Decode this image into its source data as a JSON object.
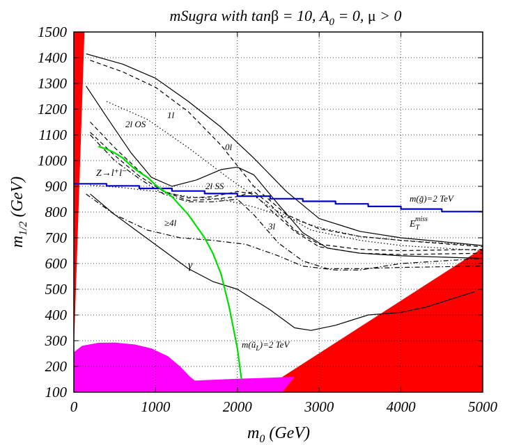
{
  "chart_data": {
    "type": "line",
    "title_parts": {
      "prefix": "mSugra with tan",
      "beta": "β",
      "eq": " = 10, A",
      "a_sub": "0",
      "mid": " = 0, ",
      "mu": "μ",
      "suffix": " > 0"
    },
    "xlabel_parts": {
      "base": "m",
      "sub": "0",
      "rest": " (GeV)"
    },
    "ylabel_parts": {
      "base": "m",
      "sub": "1/2",
      "rest": " (GeV)"
    },
    "xlim": [
      0,
      5000
    ],
    "ylim": [
      100,
      1500
    ],
    "xticks": [
      "0",
      "1000",
      "2000",
      "3000",
      "4000",
      "5000"
    ],
    "xtick_values": [
      0,
      1000,
      2000,
      3000,
      4000,
      5000
    ],
    "yticks": [
      "100",
      "200",
      "300",
      "400",
      "500",
      "600",
      "700",
      "800",
      "900",
      "1000",
      "1100",
      "1200",
      "1300",
      "1400",
      "1500"
    ],
    "ytick_values": [
      100,
      200,
      300,
      400,
      500,
      600,
      700,
      800,
      900,
      1000,
      1100,
      1200,
      1300,
      1400,
      1500
    ],
    "grid": true,
    "colors": {
      "excluded": "#ff0000",
      "lep": "#ff00ff",
      "gluino": "#0000cc",
      "squark": "#00dd00",
      "reach": "#000000"
    },
    "regions": [
      {
        "name": "excluded-left",
        "color": "#ff0000",
        "points": [
          [
            0,
            100
          ],
          [
            0,
            1500
          ],
          [
            130,
            1500
          ],
          [
            0,
            260
          ]
        ]
      },
      {
        "name": "excluded-right",
        "color": "#ff0000",
        "points": [
          [
            2260,
            100
          ],
          [
            5000,
            660
          ],
          [
            5000,
            100
          ]
        ]
      },
      {
        "name": "lep-excluded",
        "color": "#ff00ff",
        "points": [
          [
            0,
            100
          ],
          [
            0,
            255
          ],
          [
            100,
            280
          ],
          [
            300,
            292
          ],
          [
            500,
            293
          ],
          [
            750,
            285
          ],
          [
            950,
            270
          ],
          [
            1150,
            240
          ],
          [
            1300,
            200
          ],
          [
            1420,
            160
          ],
          [
            1480,
            145
          ],
          [
            1700,
            148
          ],
          [
            2000,
            152
          ],
          [
            2300,
            155
          ],
          [
            2700,
            160
          ],
          [
            2550,
            100
          ]
        ]
      }
    ],
    "series": [
      {
        "name": "E_T^miss",
        "style": "solid",
        "points": [
          [
            150,
            1415
          ],
          [
            600,
            1375
          ],
          [
            1000,
            1320
          ],
          [
            1400,
            1230
          ],
          [
            1800,
            1130
          ],
          [
            2200,
            1010
          ],
          [
            2600,
            880
          ],
          [
            3000,
            775
          ],
          [
            3500,
            725
          ],
          [
            4000,
            700
          ],
          [
            4500,
            685
          ],
          [
            5000,
            670
          ]
        ]
      },
      {
        "name": "1l",
        "style": "dashed",
        "points": [
          [
            200,
            1390
          ],
          [
            600,
            1345
          ],
          [
            1000,
            1285
          ],
          [
            1400,
            1190
          ],
          [
            1800,
            1060
          ],
          [
            2200,
            900
          ],
          [
            2600,
            790
          ],
          [
            3000,
            735
          ],
          [
            3500,
            705
          ],
          [
            4000,
            690
          ],
          [
            5000,
            665
          ]
        ]
      },
      {
        "name": "0l",
        "style": "solid",
        "points": [
          [
            150,
            1290
          ],
          [
            400,
            1170
          ],
          [
            700,
            1030
          ],
          [
            950,
            935
          ],
          [
            1200,
            900
          ],
          [
            1500,
            925
          ],
          [
            1800,
            965
          ],
          [
            2000,
            975
          ],
          [
            2200,
            945
          ],
          [
            2500,
            830
          ],
          [
            2800,
            720
          ],
          [
            3100,
            660
          ],
          [
            3500,
            640
          ],
          [
            4000,
            630
          ],
          [
            5000,
            620
          ]
        ]
      },
      {
        "name": "2l OS",
        "style": "dashed",
        "points": [
          [
            200,
            1150
          ],
          [
            500,
            1050
          ],
          [
            800,
            960
          ],
          [
            1100,
            880
          ],
          [
            1400,
            845
          ],
          [
            1700,
            850
          ],
          [
            2000,
            860
          ],
          [
            2200,
            880
          ],
          [
            2400,
            830
          ],
          [
            2700,
            730
          ],
          [
            3000,
            675
          ],
          [
            3500,
            655
          ],
          [
            4000,
            650
          ],
          [
            5000,
            655
          ]
        ]
      },
      {
        "name": "2l OS dotted",
        "style": "dotted",
        "points": [
          [
            400,
            1230
          ],
          [
            900,
            1160
          ],
          [
            1400,
            1050
          ],
          [
            1900,
            930
          ],
          [
            2400,
            820
          ],
          [
            2900,
            730
          ],
          [
            3500,
            690
          ],
          [
            4000,
            670
          ],
          [
            5000,
            650
          ]
        ]
      },
      {
        "name": "2l SS",
        "style": "dashed",
        "points": [
          [
            200,
            1110
          ],
          [
            500,
            1020
          ],
          [
            800,
            940
          ],
          [
            1100,
            880
          ],
          [
            1400,
            855
          ],
          [
            1700,
            860
          ],
          [
            2000,
            880
          ],
          [
            2200,
            870
          ],
          [
            2400,
            810
          ],
          [
            2700,
            725
          ],
          [
            3000,
            665
          ],
          [
            3500,
            640
          ],
          [
            4000,
            635
          ],
          [
            5000,
            640
          ]
        ]
      },
      {
        "name": "3l",
        "style": "dashdot",
        "points": [
          [
            200,
            1100
          ],
          [
            500,
            1000
          ],
          [
            800,
            930
          ],
          [
            1100,
            870
          ],
          [
            1400,
            840
          ],
          [
            1700,
            840
          ],
          [
            2000,
            850
          ],
          [
            2200,
            790
          ],
          [
            2500,
            680
          ],
          [
            2800,
            610
          ],
          [
            3100,
            580
          ],
          [
            3500,
            580
          ],
          [
            4000,
            585
          ],
          [
            5000,
            590
          ]
        ]
      },
      {
        "name": ">=4l",
        "style": "dashdot",
        "points": [
          [
            150,
            870
          ],
          [
            500,
            790
          ],
          [
            900,
            730
          ],
          [
            1300,
            700
          ],
          [
            1700,
            690
          ],
          [
            2100,
            675
          ],
          [
            2500,
            630
          ],
          [
            2800,
            590
          ],
          [
            3200,
            575
          ],
          [
            3500,
            575
          ],
          [
            4000,
            600
          ],
          [
            5000,
            620
          ]
        ]
      },
      {
        "name": "Z->l+l-",
        "style": "dotted",
        "points": [
          [
            200,
            905
          ],
          [
            600,
            895
          ],
          [
            1000,
            880
          ],
          [
            1400,
            860
          ],
          [
            1800,
            850
          ],
          [
            2200,
            820
          ],
          [
            2600,
            780
          ],
          [
            3000,
            740
          ],
          [
            3500,
            705
          ],
          [
            4000,
            690
          ],
          [
            5000,
            670
          ]
        ]
      },
      {
        "name": "gamma",
        "style": "solid",
        "points": [
          [
            200,
            870
          ],
          [
            500,
            790
          ],
          [
            800,
            720
          ],
          [
            1100,
            650
          ],
          [
            1400,
            580
          ],
          [
            1700,
            530
          ],
          [
            2000,
            500
          ],
          [
            2400,
            420
          ],
          [
            2700,
            350
          ],
          [
            2900,
            340
          ],
          [
            3200,
            360
          ],
          [
            3600,
            400
          ],
          [
            4000,
            410
          ],
          [
            4300,
            430
          ],
          [
            4700,
            470
          ],
          [
            4900,
            490
          ]
        ]
      },
      {
        "name": "m(gluino)=2 TeV",
        "color": "#0000cc",
        "style": "solid",
        "points": [
          [
            0,
            910
          ],
          [
            400,
            910
          ],
          [
            400,
            902
          ],
          [
            800,
            902
          ],
          [
            800,
            892
          ],
          [
            1200,
            892
          ],
          [
            1200,
            882
          ],
          [
            1600,
            882
          ],
          [
            1600,
            872
          ],
          [
            2000,
            872
          ],
          [
            2000,
            862
          ],
          [
            2400,
            862
          ],
          [
            2400,
            852
          ],
          [
            2800,
            852
          ],
          [
            2800,
            842
          ],
          [
            3200,
            842
          ],
          [
            3200,
            832
          ],
          [
            3600,
            832
          ],
          [
            3600,
            822
          ],
          [
            4000,
            822
          ],
          [
            4000,
            812
          ],
          [
            4500,
            812
          ],
          [
            4500,
            802
          ],
          [
            5000,
            802
          ]
        ]
      },
      {
        "name": "m(squark uL)=2 TeV",
        "color": "#00dd00",
        "style": "solid",
        "points": [
          [
            300,
            1055
          ],
          [
            400,
            1045
          ],
          [
            500,
            1030
          ],
          [
            600,
            1010
          ],
          [
            700,
            980
          ],
          [
            800,
            955
          ],
          [
            900,
            935
          ],
          [
            1000,
            905
          ],
          [
            1200,
            860
          ],
          [
            1400,
            790
          ],
          [
            1600,
            700
          ],
          [
            1700,
            640
          ],
          [
            1800,
            560
          ],
          [
            1900,
            430
          ],
          [
            2000,
            270
          ],
          [
            2050,
            150
          ]
        ]
      }
    ],
    "labels": [
      {
        "key": "label_2los",
        "text": "2l OS"
      },
      {
        "key": "label_1l",
        "text": "1l"
      },
      {
        "key": "label_0l",
        "text": "0l"
      },
      {
        "key": "label_zll",
        "text": "Z→l⁺l⁻"
      },
      {
        "key": "label_2lss",
        "text": "2l SS"
      },
      {
        "key": "label_4l",
        "text": "≥4l"
      },
      {
        "key": "label_3l",
        "text": "3l"
      },
      {
        "key": "label_gamma",
        "text": "γ"
      },
      {
        "key": "label_mg",
        "text": "m(g̃)=2 TeV"
      },
      {
        "key": "label_et",
        "text": "E_T^miss"
      },
      {
        "key": "label_mu",
        "text": "m(ũ_L)=2 TeV"
      }
    ]
  }
}
